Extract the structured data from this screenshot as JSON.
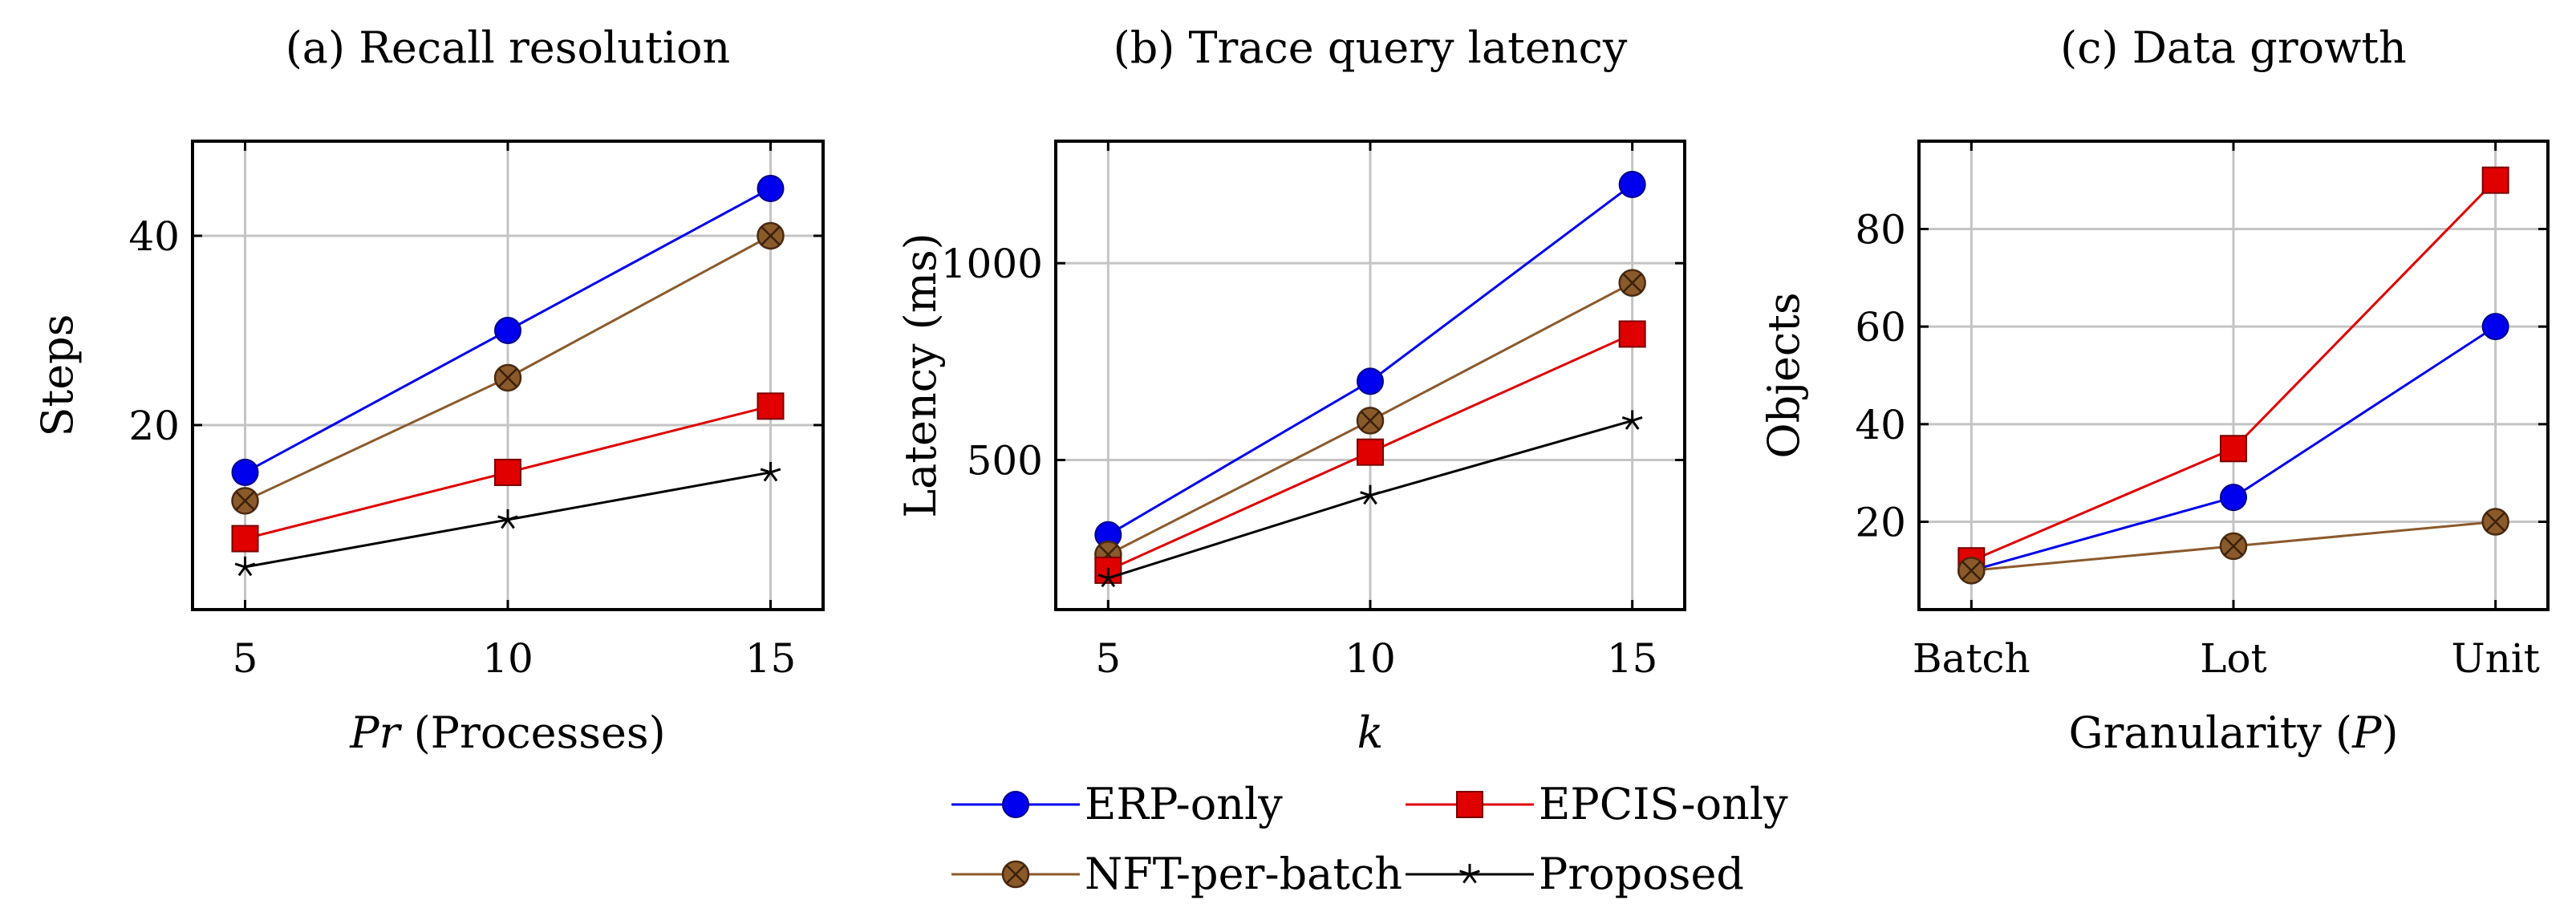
{
  "colors": {
    "ERP-only": "#0000ee",
    "EPCIS-only": "#e00000",
    "NFT-per-batch": "#8b5a2b",
    "Proposed": "#000000"
  },
  "legend": {
    "placement": "bottom-center",
    "entries": [
      {
        "label": "ERP-only",
        "marker": "circle"
      },
      {
        "label": "EPCIS-only",
        "marker": "square"
      },
      {
        "label": "NFT-per-batch",
        "marker": "circle-x"
      },
      {
        "label": "Proposed",
        "marker": "star"
      }
    ]
  },
  "chart_data": [
    {
      "type": "line",
      "title": "(a) Recall resolution",
      "xlabel_italic": "Pr",
      "xlabel_rest": " (Processes)",
      "ylabel": "Steps",
      "x": [
        5,
        10,
        15
      ],
      "xticks": [
        "5",
        "10",
        "15"
      ],
      "yticks": [
        20,
        40
      ],
      "xlim": [
        4,
        16
      ],
      "ylim": [
        0.5,
        50
      ],
      "grid": true,
      "series": [
        {
          "name": "ERP-only",
          "values": [
            15,
            30,
            45
          ]
        },
        {
          "name": "NFT-per-batch",
          "values": [
            12,
            25,
            40
          ]
        },
        {
          "name": "EPCIS-only",
          "values": [
            8,
            15,
            22
          ]
        },
        {
          "name": "Proposed",
          "values": [
            5,
            10,
            15
          ]
        }
      ]
    },
    {
      "type": "line",
      "title": "(b) Trace query latency",
      "xlabel_italic": "k",
      "xlabel_rest": "",
      "ylabel": "Latency (ms)",
      "x": [
        5,
        10,
        15
      ],
      "xticks": [
        "5",
        "10",
        "15"
      ],
      "yticks": [
        500,
        1000
      ],
      "xlim": [
        4,
        16
      ],
      "ylim": [
        120,
        1310
      ],
      "grid": true,
      "series": [
        {
          "name": "ERP-only",
          "values": [
            310,
            700,
            1200
          ]
        },
        {
          "name": "NFT-per-batch",
          "values": [
            260,
            600,
            950
          ]
        },
        {
          "name": "EPCIS-only",
          "values": [
            220,
            520,
            820
          ]
        },
        {
          "name": "Proposed",
          "values": [
            200,
            410,
            600
          ]
        }
      ]
    },
    {
      "type": "line",
      "title": "(c) Data growth",
      "xlabel_rest_pre": "Granularity (",
      "xlabel_italic": "P",
      "xlabel_rest": ")",
      "ylabel": "Objects",
      "categories": [
        "Batch",
        "Lot",
        "Unit"
      ],
      "x": [
        0,
        1,
        2
      ],
      "xticks": [
        "Batch",
        "Lot",
        "Unit"
      ],
      "yticks": [
        20,
        40,
        60,
        80
      ],
      "xlim": [
        -0.2,
        2.2
      ],
      "ylim": [
        2,
        98
      ],
      "grid": true,
      "series": [
        {
          "name": "EPCIS-only",
          "values": [
            12,
            35,
            90
          ]
        },
        {
          "name": "ERP-only",
          "values": [
            10,
            25,
            60
          ]
        },
        {
          "name": "NFT-per-batch",
          "values": [
            10,
            15,
            20
          ]
        }
      ]
    }
  ]
}
